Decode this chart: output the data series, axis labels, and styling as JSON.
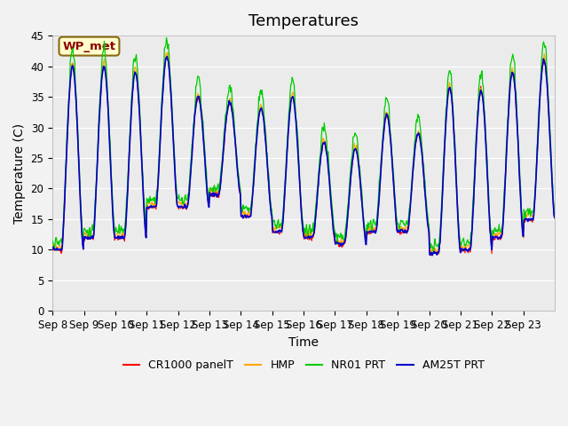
{
  "title": "Temperatures",
  "xlabel": "Time",
  "ylabel": "Temperature (C)",
  "ylim": [
    0,
    45
  ],
  "yticks": [
    0,
    5,
    10,
    15,
    20,
    25,
    30,
    35,
    40,
    45
  ],
  "x_labels": [
    "Sep 8",
    "Sep 9",
    "Sep 10",
    "Sep 11",
    "Sep 12",
    "Sep 13",
    "Sep 14",
    "Sep 15",
    "Sep 16",
    "Sep 17",
    "Sep 18",
    "Sep 19",
    "Sep 20",
    "Sep 21",
    "Sep 22",
    "Sep 23"
  ],
  "annotation_text": "WP_met",
  "annotation_color": "#8B0000",
  "annotation_bg": "#FFFFCC",
  "line_colors": {
    "CR1000": "#FF0000",
    "HMP": "#FFA500",
    "NR01": "#00CC00",
    "AM25T": "#0000CC"
  },
  "legend_labels": [
    "CR1000 panelT",
    "HMP",
    "NR01 PRT",
    "AM25T PRT"
  ],
  "title_fontsize": 13,
  "axis_fontsize": 10,
  "tick_fontsize": 8.5
}
